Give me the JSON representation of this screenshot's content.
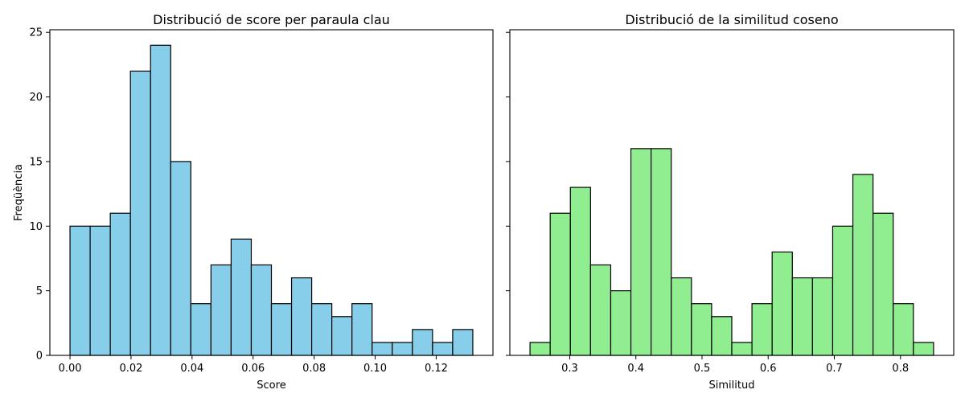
{
  "chart_data": [
    {
      "type": "histogram",
      "title": "Distribució de score per paraula clau",
      "xlabel": "Score",
      "ylabel": "Freqüència",
      "bin_edges": [
        0.0,
        0.0066,
        0.0132,
        0.0198,
        0.0264,
        0.033,
        0.0396,
        0.0462,
        0.0528,
        0.0594,
        0.066,
        0.0726,
        0.0792,
        0.0858,
        0.0924,
        0.099,
        0.1056,
        0.1122,
        0.1188,
        0.1254,
        0.132
      ],
      "counts": [
        10,
        10,
        11,
        22,
        24,
        15,
        4,
        7,
        9,
        7,
        4,
        6,
        4,
        3,
        4,
        1,
        1,
        2,
        1,
        2
      ],
      "color": "#87ceeb",
      "edge_color": "#000000",
      "xlim": [
        -0.0066,
        0.1386
      ],
      "ylim": [
        0,
        25.2
      ],
      "xticks": [
        0.0,
        0.02,
        0.04,
        0.06,
        0.08,
        0.1,
        0.12
      ],
      "xtick_labels": [
        "0.00",
        "0.02",
        "0.04",
        "0.06",
        "0.08",
        "0.10",
        "0.12"
      ],
      "yticks": [
        0,
        5,
        10,
        15,
        20,
        25
      ],
      "ytick_labels": [
        "0",
        "5",
        "10",
        "15",
        "20",
        "25"
      ],
      "grid": false
    },
    {
      "type": "histogram",
      "title": "Distribució de la similitud coseno",
      "xlabel": "Similitud",
      "ylabel": "",
      "bin_edges": [
        0.24,
        0.2705,
        0.301,
        0.3315,
        0.362,
        0.3925,
        0.423,
        0.4535,
        0.484,
        0.5145,
        0.545,
        0.5755,
        0.606,
        0.6365,
        0.667,
        0.6975,
        0.728,
        0.7585,
        0.789,
        0.8195,
        0.85
      ],
      "counts": [
        1,
        11,
        13,
        7,
        5,
        16,
        16,
        6,
        4,
        3,
        1,
        4,
        8,
        6,
        6,
        10,
        14,
        11,
        4,
        1
      ],
      "color": "#90ee90",
      "edge_color": "#000000",
      "xlim": [
        0.2095,
        0.8805
      ],
      "ylim": [
        0,
        25.2
      ],
      "xticks": [
        0.3,
        0.4,
        0.5,
        0.6,
        0.7,
        0.8
      ],
      "xtick_labels": [
        "0.3",
        "0.4",
        "0.5",
        "0.6",
        "0.7",
        "0.8"
      ],
      "yticks": [
        0,
        5,
        10,
        15,
        20,
        25
      ],
      "ytick_labels": [],
      "sharey": true,
      "grid": false
    }
  ]
}
